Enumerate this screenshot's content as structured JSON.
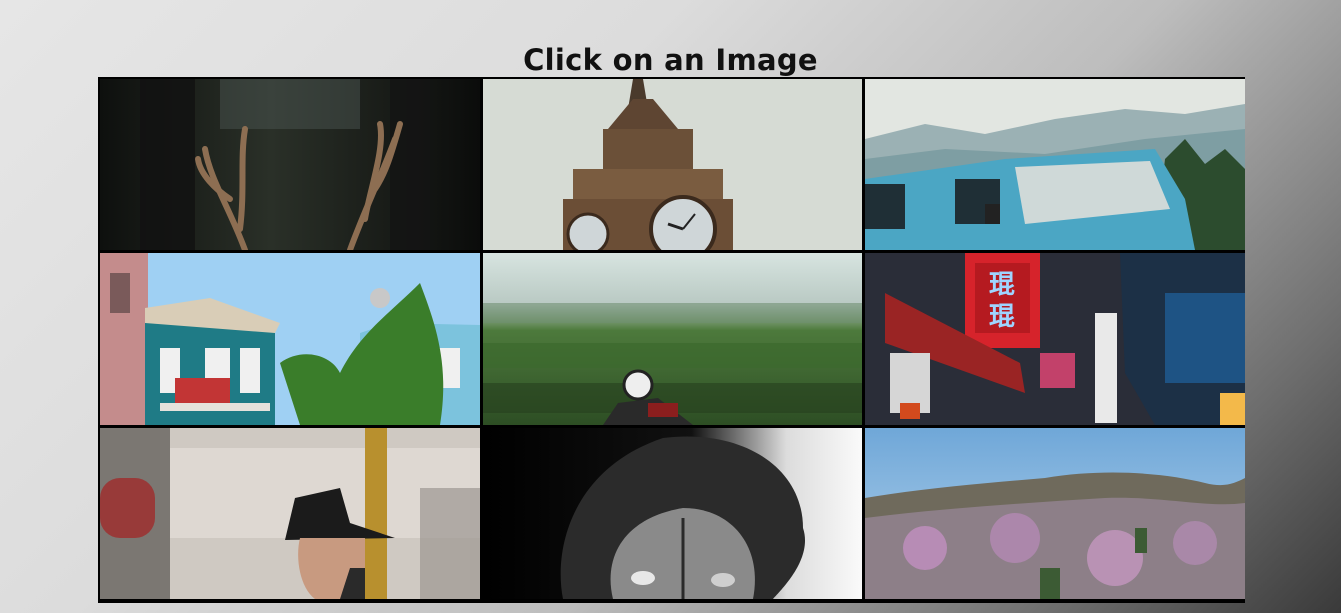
{
  "page": {
    "title": "Click on an Image"
  },
  "gallery": {
    "images": [
      {
        "subject": "antlers-forest",
        "colors": {
          "bg": "#1c1f1b",
          "accent": "#8a6a4d"
        }
      },
      {
        "subject": "clock-tower",
        "colors": {
          "bg": "#d9ddd6",
          "accent": "#6b4f36"
        }
      },
      {
        "subject": "blue-van-mountains",
        "colors": {
          "bg": "#dfe3df",
          "accent": "#4ba6c4"
        }
      },
      {
        "subject": "colorful-houses",
        "colors": {
          "bg": "#a9d3f2",
          "accent": "#1e7b87"
        }
      },
      {
        "subject": "motorcyclist-motion-blur",
        "colors": {
          "bg": "#cfe0dc",
          "accent": "#3b6a2d"
        }
      },
      {
        "subject": "neon-street-signs",
        "colors": {
          "bg": "#2b2e3a",
          "accent": "#d92b2b"
        }
      },
      {
        "subject": "man-in-hat-window",
        "colors": {
          "bg": "#d8d3cc",
          "accent": "#a07d3a"
        }
      },
      {
        "subject": "lion-black-white",
        "colors": {
          "bg": "#000000",
          "accent": "#f2f2f2"
        }
      },
      {
        "subject": "blossom-hillside",
        "colors": {
          "bg": "#8fb9e0",
          "accent": "#b48cb1"
        }
      }
    ]
  }
}
